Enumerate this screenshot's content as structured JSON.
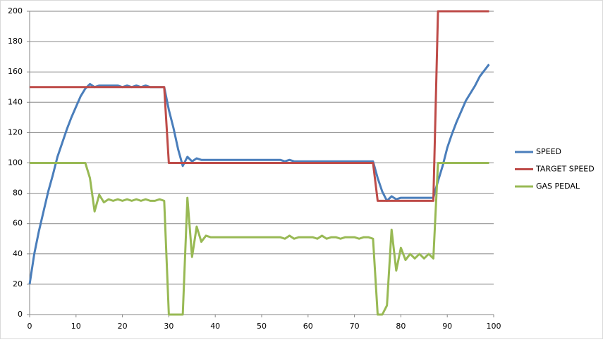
{
  "chart_data": {
    "type": "line",
    "x": [
      0,
      1,
      2,
      3,
      4,
      5,
      6,
      7,
      8,
      9,
      10,
      11,
      12,
      13,
      14,
      15,
      16,
      17,
      18,
      19,
      20,
      21,
      22,
      23,
      24,
      25,
      26,
      27,
      28,
      29,
      30,
      31,
      32,
      33,
      34,
      35,
      36,
      37,
      38,
      39,
      40,
      41,
      42,
      43,
      44,
      45,
      46,
      47,
      48,
      49,
      50,
      51,
      52,
      53,
      54,
      55,
      56,
      57,
      58,
      59,
      60,
      61,
      62,
      63,
      64,
      65,
      66,
      67,
      68,
      69,
      70,
      71,
      72,
      73,
      74,
      75,
      76,
      77,
      78,
      79,
      80,
      81,
      82,
      83,
      84,
      85,
      86,
      87,
      88,
      89,
      90,
      91,
      92,
      93,
      94,
      95,
      96,
      97,
      98,
      99
    ],
    "series": [
      {
        "name": "SPEED",
        "color": "#4a7ebb",
        "values": [
          20,
          40,
          55,
          68,
          81,
          92,
          104,
          113,
          122,
          130,
          137,
          144,
          149,
          152,
          150,
          151,
          151,
          151,
          151,
          151,
          150,
          151,
          150,
          151,
          150,
          151,
          150,
          150,
          150,
          150,
          135,
          123,
          109,
          98,
          104,
          101,
          103,
          102,
          102,
          102,
          102,
          102,
          102,
          102,
          102,
          102,
          102,
          102,
          102,
          102,
          102,
          102,
          102,
          102,
          102,
          101,
          102,
          101,
          101,
          101,
          101,
          101,
          101,
          101,
          101,
          101,
          101,
          101,
          101,
          101,
          101,
          101,
          101,
          101,
          101,
          90,
          81,
          75,
          78,
          76,
          77,
          77,
          77,
          77,
          77,
          77,
          77,
          77,
          88,
          98,
          110,
          119,
          127,
          134,
          141,
          146,
          151,
          157,
          161,
          165
        ]
      },
      {
        "name": "TARGET SPEED",
        "color": "#be4b48",
        "values": [
          150,
          150,
          150,
          150,
          150,
          150,
          150,
          150,
          150,
          150,
          150,
          150,
          150,
          150,
          150,
          150,
          150,
          150,
          150,
          150,
          150,
          150,
          150,
          150,
          150,
          150,
          150,
          150,
          150,
          150,
          100,
          100,
          100,
          100,
          100,
          100,
          100,
          100,
          100,
          100,
          100,
          100,
          100,
          100,
          100,
          100,
          100,
          100,
          100,
          100,
          100,
          100,
          100,
          100,
          100,
          100,
          100,
          100,
          100,
          100,
          100,
          100,
          100,
          100,
          100,
          100,
          100,
          100,
          100,
          100,
          100,
          100,
          100,
          100,
          100,
          75,
          75,
          75,
          75,
          75,
          75,
          75,
          75,
          75,
          75,
          75,
          75,
          75,
          200,
          200,
          200,
          200,
          200,
          200,
          200,
          200,
          200,
          200,
          200,
          200
        ]
      },
      {
        "name": "GAS PEDAL",
        "color": "#98b954",
        "values": [
          100,
          100,
          100,
          100,
          100,
          100,
          100,
          100,
          100,
          100,
          100,
          100,
          100,
          90,
          68,
          79,
          74,
          76,
          75,
          76,
          75,
          76,
          75,
          76,
          75,
          76,
          75,
          75,
          76,
          75,
          0,
          0,
          0,
          0,
          77,
          38,
          58,
          48,
          52,
          51,
          51,
          51,
          51,
          51,
          51,
          51,
          51,
          51,
          51,
          51,
          51,
          51,
          51,
          51,
          51,
          50,
          52,
          50,
          51,
          51,
          51,
          51,
          50,
          52,
          50,
          51,
          51,
          50,
          51,
          51,
          51,
          50,
          51,
          51,
          50,
          0,
          0,
          6,
          56,
          29,
          44,
          36,
          40,
          37,
          40,
          37,
          40,
          37,
          100,
          100,
          100,
          100,
          100,
          100,
          100,
          100,
          100,
          100,
          100,
          100
        ]
      }
    ],
    "xlim": [
      0,
      100
    ],
    "xticks": [
      0,
      10,
      20,
      30,
      40,
      50,
      60,
      70,
      80,
      90,
      100
    ],
    "ylim": [
      0,
      200
    ],
    "yticks": [
      0,
      20,
      40,
      60,
      80,
      100,
      120,
      140,
      160,
      180,
      200
    ],
    "grid": true,
    "legend": "right"
  }
}
